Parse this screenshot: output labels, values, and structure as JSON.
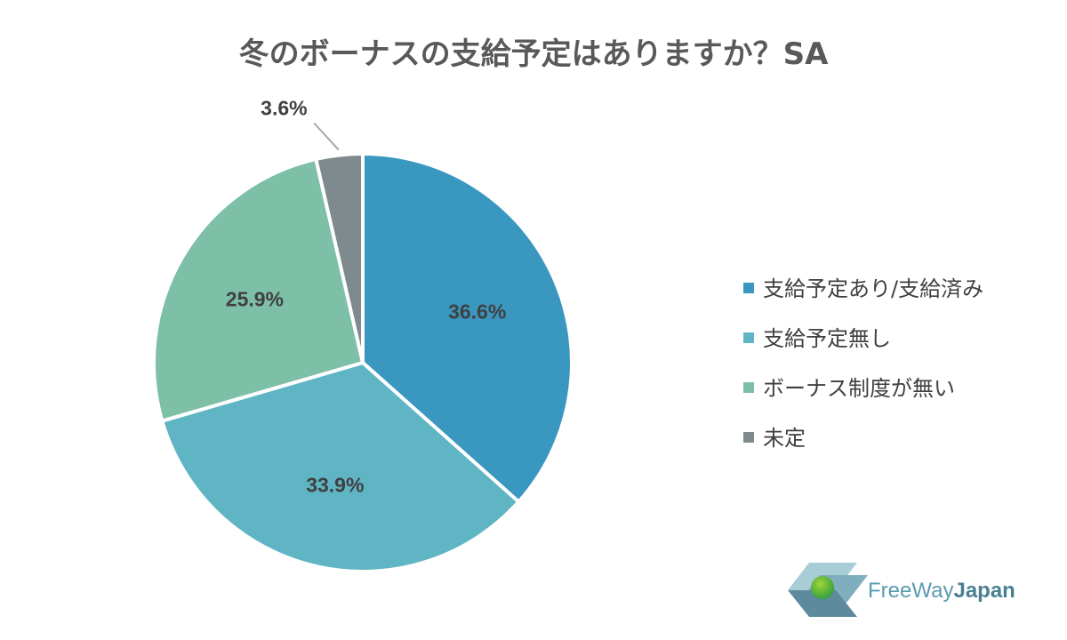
{
  "chart_data": {
    "type": "pie",
    "title": "冬のボーナスの支給予定はありますか？SA",
    "categories": [
      "支給予定あり/支給済み",
      "支給予定無し",
      "ボーナス制度が無い",
      "未定"
    ],
    "values": [
      36.6,
      33.9,
      25.9,
      3.6
    ],
    "labels": [
      "36.6%",
      "33.9%",
      "25.9%",
      "3.6%"
    ],
    "colors": [
      "#3a97c0",
      "#5fb5c4",
      "#7dbfa7",
      "#7e8a8d"
    ],
    "start_angle_deg": 0,
    "direction": "clockwise",
    "legend_position": "right"
  },
  "logo": {
    "text_part1": "FreeWay",
    "text_part2": "Japan",
    "colors": {
      "dark": "#5d8a9c",
      "light": "#a9cdd6",
      "mid": "#7fafbf",
      "dot_light": "#9fd43c",
      "dot_dark": "#2f9e3a"
    }
  }
}
